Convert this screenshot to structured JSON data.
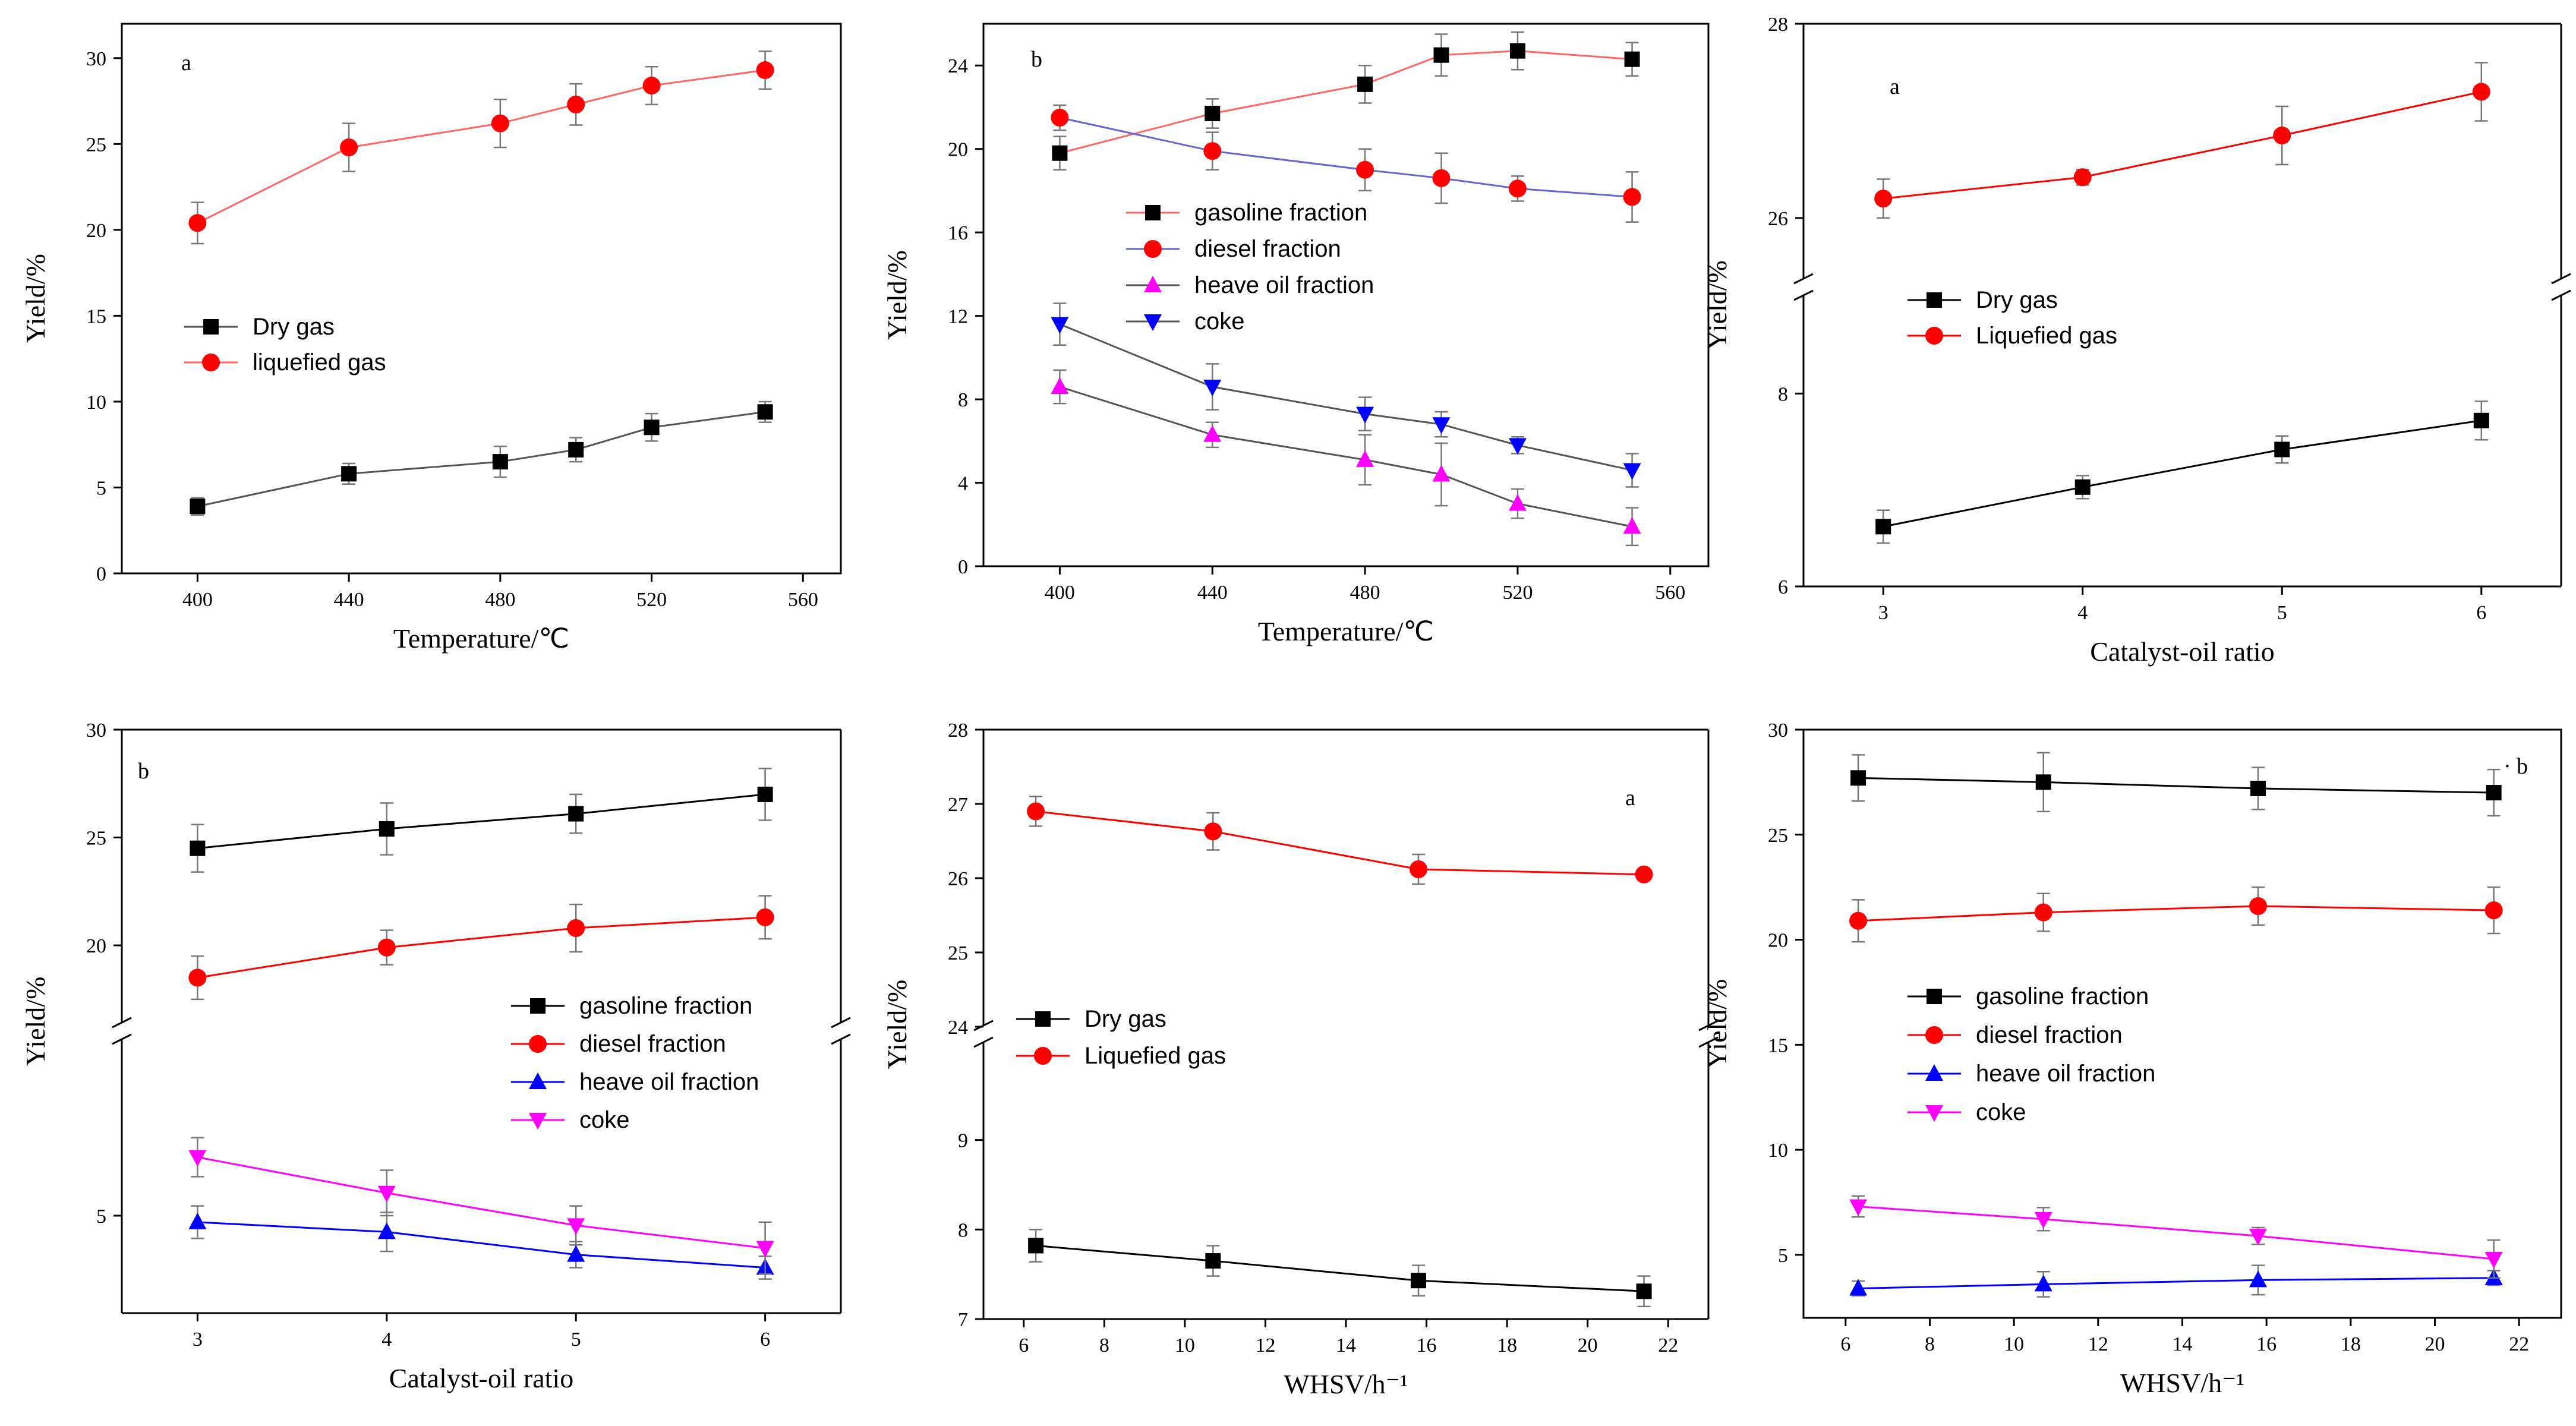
{
  "chart_data": [
    {
      "id": "p1",
      "type": "line",
      "panel_label": "a",
      "xlabel": "Temperature/℃",
      "ylabel": "Yield/%",
      "xlim": [
        380,
        570
      ],
      "ylim": [
        0,
        32
      ],
      "xticks": [
        400,
        440,
        480,
        520,
        560
      ],
      "yticks": [
        0,
        5,
        10,
        15,
        20,
        25,
        30
      ],
      "xtick_labels": [
        "400",
        "440",
        "480",
        "520",
        "560"
      ],
      "ytick_labels": [
        "0",
        "5",
        "10",
        "15",
        "20",
        "25",
        "30"
      ],
      "legend_position": "middle-left",
      "series": [
        {
          "name": "Dry gas",
          "marker": "square",
          "color": "#000000",
          "line_color": "#555555",
          "x": [
            400,
            440,
            480,
            500,
            520,
            550
          ],
          "y": [
            3.9,
            5.8,
            6.5,
            7.2,
            8.5,
            9.4
          ],
          "err": [
            0.5,
            0.6,
            0.9,
            0.7,
            0.8,
            0.6
          ]
        },
        {
          "name": "liquefied gas",
          "marker": "circle",
          "color": "#ff0000",
          "line_color": "#ff6666",
          "x": [
            400,
            440,
            480,
            500,
            520,
            550
          ],
          "y": [
            20.4,
            24.8,
            26.2,
            27.3,
            28.4,
            29.3
          ],
          "err": [
            1.2,
            1.4,
            1.4,
            1.2,
            1.1,
            1.1
          ]
        }
      ]
    },
    {
      "id": "p2",
      "type": "line",
      "panel_label": "b",
      "xlabel": "Temperature/℃",
      "ylabel": "Yield/%",
      "xlim": [
        380,
        570
      ],
      "ylim": [
        0,
        26
      ],
      "xticks": [
        400,
        440,
        480,
        520,
        560
      ],
      "yticks": [
        0,
        4,
        8,
        12,
        16,
        20,
        24
      ],
      "xtick_labels": [
        "400",
        "440",
        "480",
        "520",
        "560"
      ],
      "ytick_labels": [
        "0",
        "4",
        "8",
        "12",
        "16",
        "20",
        "24"
      ],
      "legend_position": "middle",
      "series": [
        {
          "name": "gasoline fraction",
          "marker": "square",
          "color": "#000000",
          "line_color": "#ff6666",
          "x": [
            400,
            440,
            480,
            500,
            520,
            550
          ],
          "y": [
            19.8,
            21.7,
            23.1,
            24.5,
            24.7,
            24.3
          ],
          "err": [
            0.8,
            0.7,
            0.9,
            1.0,
            0.9,
            0.8
          ]
        },
        {
          "name": "diesel fraction",
          "marker": "circle",
          "color": "#ff0000",
          "line_color": "#6666cc",
          "x": [
            400,
            440,
            480,
            500,
            520,
            550
          ],
          "y": [
            21.5,
            19.9,
            19.0,
            18.6,
            18.1,
            17.7
          ],
          "err": [
            0.6,
            0.9,
            1.0,
            1.2,
            0.6,
            1.2
          ]
        },
        {
          "name": "heave oil fraction",
          "marker": "triangle-up",
          "color": "#ff00ff",
          "line_color": "#555555",
          "x": [
            400,
            440,
            480,
            500,
            520,
            550
          ],
          "y": [
            8.6,
            6.3,
            5.1,
            4.4,
            3.0,
            1.9
          ],
          "err": [
            0.8,
            0.6,
            1.2,
            1.5,
            0.7,
            0.9
          ]
        },
        {
          "name": "coke",
          "marker": "triangle-down",
          "color": "#0000ff",
          "line_color": "#555555",
          "x": [
            400,
            440,
            480,
            500,
            520,
            550
          ],
          "y": [
            11.6,
            8.6,
            7.3,
            6.8,
            5.8,
            4.6
          ],
          "err": [
            1.0,
            1.1,
            0.8,
            0.6,
            0.4,
            0.8
          ]
        }
      ]
    },
    {
      "id": "p3",
      "type": "line",
      "panel_label": "a",
      "xlabel": "Catalyst-oil ratio",
      "ylabel": "Yield/%",
      "xlim": [
        2.6,
        6.4
      ],
      "broken_axis": true,
      "lower_range": [
        6,
        9
      ],
      "upper_range": [
        25.4,
        28
      ],
      "xticks": [
        3,
        4,
        5,
        6
      ],
      "xtick_labels": [
        "3",
        "4",
        "5",
        "6"
      ],
      "yticks_lower": [
        6,
        8
      ],
      "yticks_upper": [
        26,
        28
      ],
      "ytick_labels_lower": [
        "6",
        "8"
      ],
      "ytick_labels_upper": [
        "26",
        "28"
      ],
      "legend_position": "middle-left",
      "series": [
        {
          "name": "Dry gas",
          "marker": "square",
          "color": "#000000",
          "line_color": "#000000",
          "x": [
            3,
            4,
            5,
            6
          ],
          "y": [
            6.62,
            7.03,
            7.42,
            7.72
          ],
          "err": [
            0.17,
            0.12,
            0.14,
            0.2
          ]
        },
        {
          "name": "Liquefied gas",
          "marker": "circle",
          "color": "#ff0000",
          "line_color": "#ff0000",
          "x": [
            3,
            4,
            5,
            6
          ],
          "y": [
            26.2,
            26.42,
            26.85,
            27.3
          ],
          "err": [
            0.2,
            0.08,
            0.3,
            0.3
          ]
        }
      ]
    },
    {
      "id": "p4",
      "type": "line",
      "panel_label": "b",
      "xlabel": "Catalyst-oil ratio",
      "ylabel": "Yield/%",
      "xlim": [
        2.6,
        6.4
      ],
      "broken_axis": true,
      "lower_range": [
        2,
        9.5
      ],
      "upper_range": [
        17,
        30
      ],
      "xticks": [
        3,
        4,
        5,
        6
      ],
      "xtick_labels": [
        "3",
        "4",
        "5",
        "6"
      ],
      "yticks_lower": [
        5
      ],
      "yticks_upper": [
        20,
        25,
        30
      ],
      "ytick_labels_lower": [
        "5"
      ],
      "ytick_labels_upper": [
        "20",
        "25",
        "30"
      ],
      "legend_position": "middle-right",
      "series": [
        {
          "name": "gasoline fraction",
          "marker": "square",
          "color": "#000000",
          "line_color": "#000000",
          "x": [
            3,
            4,
            5,
            6
          ],
          "y": [
            24.5,
            25.4,
            26.1,
            27.0
          ],
          "err": [
            1.1,
            1.2,
            0.9,
            1.2
          ]
        },
        {
          "name": "diesel fraction",
          "marker": "circle",
          "color": "#ff0000",
          "line_color": "#ff0000",
          "x": [
            3,
            4,
            5,
            6
          ],
          "y": [
            18.5,
            19.9,
            20.8,
            21.3
          ],
          "err": [
            1.0,
            0.8,
            1.1,
            1.0
          ]
        },
        {
          "name": "heave oil fraction",
          "marker": "triangle-up",
          "color": "#0000ff",
          "line_color": "#0000ff",
          "x": [
            3,
            4,
            5,
            6
          ],
          "y": [
            4.8,
            4.5,
            3.8,
            3.4
          ],
          "err": [
            0.5,
            0.6,
            0.4,
            0.35
          ]
        },
        {
          "name": "coke",
          "marker": "triangle-down",
          "color": "#ff00ff",
          "line_color": "#ff00ff",
          "x": [
            3,
            4,
            5,
            6
          ],
          "y": [
            6.8,
            5.7,
            4.7,
            4.0
          ],
          "err": [
            0.6,
            0.7,
            0.6,
            0.8
          ]
        }
      ]
    },
    {
      "id": "p5",
      "type": "line",
      "panel_label": "a",
      "xlabel": "WHSV/h⁻¹",
      "ylabel": "Yield/%",
      "xlim": [
        5,
        23
      ],
      "broken_axis": true,
      "lower_range": [
        7,
        10
      ],
      "upper_range": [
        24,
        28
      ],
      "xticks": [
        6,
        8,
        10,
        12,
        14,
        16,
        18,
        20,
        22
      ],
      "xtick_labels": [
        "6",
        "8",
        "10",
        "12",
        "14",
        "16",
        "18",
        "20",
        "22"
      ],
      "yticks_lower": [
        7,
        8,
        9
      ],
      "yticks_upper": [
        24,
        25,
        26,
        27,
        28
      ],
      "ytick_labels_lower": [
        "7",
        "8",
        "9"
      ],
      "ytick_labels_upper": [
        "24",
        "25",
        "26",
        "27",
        "28"
      ],
      "legend_position": "middle-left",
      "series": [
        {
          "name": "Dry gas",
          "marker": "square",
          "color": "#000000",
          "line_color": "#000000",
          "x": [
            6.3,
            10.7,
            15.8,
            21.4
          ],
          "y": [
            7.82,
            7.65,
            7.43,
            7.31
          ],
          "err": [
            0.18,
            0.17,
            0.17,
            0.17
          ]
        },
        {
          "name": "Liquefied gas",
          "marker": "circle",
          "color": "#ff0000",
          "line_color": "#ff0000",
          "x": [
            6.3,
            10.7,
            15.8,
            21.4
          ],
          "y": [
            26.9,
            26.63,
            26.12,
            26.05
          ],
          "err": [
            0.2,
            0.25,
            0.2,
            0.05
          ]
        }
      ]
    },
    {
      "id": "p6",
      "type": "line",
      "panel_label": "b",
      "panel_label_prefix": "·",
      "xlabel": "WHSV/h⁻¹",
      "ylabel": "Yield/%",
      "xlim": [
        5,
        23
      ],
      "ylim": [
        2,
        30
      ],
      "xticks": [
        6,
        8,
        10,
        12,
        14,
        16,
        18,
        20,
        22
      ],
      "xtick_labels": [
        "6",
        "8",
        "10",
        "12",
        "14",
        "16",
        "18",
        "20",
        "22"
      ],
      "yticks": [
        5,
        10,
        15,
        20,
        25,
        30
      ],
      "ytick_labels": [
        "5",
        "10",
        "15",
        "20",
        "25",
        "30"
      ],
      "legend_position": "middle-left",
      "series": [
        {
          "name": "gasoline fraction",
          "marker": "square",
          "color": "#000000",
          "line_color": "#000000",
          "x": [
            6.3,
            10.7,
            15.8,
            21.4
          ],
          "y": [
            27.7,
            27.5,
            27.2,
            27.0
          ],
          "err": [
            1.1,
            1.4,
            1.0,
            1.1
          ]
        },
        {
          "name": "diesel fraction",
          "marker": "circle",
          "color": "#ff0000",
          "line_color": "#ff0000",
          "x": [
            6.3,
            10.7,
            15.8,
            21.4
          ],
          "y": [
            20.9,
            21.3,
            21.6,
            21.4
          ],
          "err": [
            1.0,
            0.9,
            0.9,
            1.1
          ]
        },
        {
          "name": "heave oil fraction",
          "marker": "triangle-up",
          "color": "#0000ff",
          "line_color": "#0000ff",
          "x": [
            6.3,
            10.7,
            15.8,
            21.4
          ],
          "y": [
            3.4,
            3.6,
            3.8,
            3.9
          ],
          "err": [
            0.35,
            0.6,
            0.7,
            0.35
          ]
        },
        {
          "name": "coke",
          "marker": "triangle-down",
          "color": "#ff00ff",
          "line_color": "#ff00ff",
          "x": [
            6.3,
            10.7,
            15.8,
            21.4
          ],
          "y": [
            7.3,
            6.7,
            5.9,
            4.8
          ],
          "err": [
            0.5,
            0.55,
            0.4,
            0.9
          ]
        }
      ]
    }
  ]
}
